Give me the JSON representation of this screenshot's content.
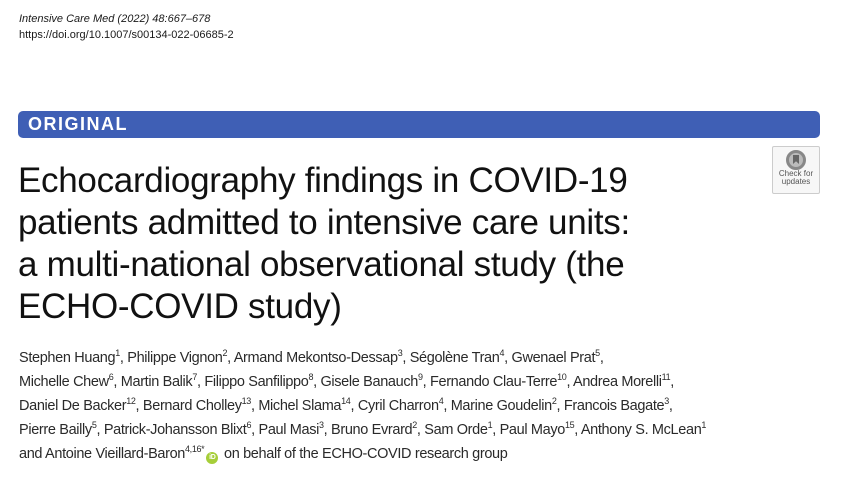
{
  "header": {
    "journal": "Intensive Care Med (2022) 48:667–678",
    "doi": "https://doi.org/10.1007/s00134-022-06685-2"
  },
  "banner": {
    "label": "ORIGINAL",
    "color": "#3f5fb5"
  },
  "check_for_updates": {
    "line1": "Check for",
    "line2": "updates"
  },
  "title_lines": [
    "Echocardiography findings in COVID-19",
    "patients admitted to intensive care units:",
    "a multi-national observational study (the",
    "ECHO-COVID study)"
  ],
  "authors": [
    [
      [
        "Stephen Huang",
        "1",
        ", "
      ],
      [
        "Philippe Vignon",
        "2",
        ", "
      ],
      [
        "Armand Mekontso-Dessap",
        "3",
        ", "
      ],
      [
        "Ségolène Tran",
        "4",
        ", "
      ],
      [
        "Gwenael Prat",
        "5",
        ","
      ]
    ],
    [
      [
        "Michelle Chew",
        "6",
        ", "
      ],
      [
        "Martin Balik",
        "7",
        ", "
      ],
      [
        "Filippo Sanfilippo",
        "8",
        ", "
      ],
      [
        "Gisele Banauch",
        "9",
        ", "
      ],
      [
        "Fernando Clau-Terre",
        "10",
        ", "
      ],
      [
        "Andrea Morelli",
        "11",
        ","
      ]
    ],
    [
      [
        "Daniel De Backer",
        "12",
        ", "
      ],
      [
        "Bernard Cholley",
        "13",
        ", "
      ],
      [
        "Michel Slama",
        "14",
        ", "
      ],
      [
        "Cyril Charron",
        "4",
        ", "
      ],
      [
        "Marine Goudelin",
        "2",
        ", "
      ],
      [
        "Francois Bagate",
        "3",
        ","
      ]
    ],
    [
      [
        "Pierre Bailly",
        "5",
        ", "
      ],
      [
        "Patrick-Johansson Blixt",
        "6",
        ", "
      ],
      [
        "Paul Masi",
        "3",
        ", "
      ],
      [
        "Bruno Evrard",
        "2",
        ", "
      ],
      [
        "Sam Orde",
        "1",
        ", "
      ],
      [
        "Paul Mayo",
        "15",
        ", "
      ],
      [
        "Anthony S. McLean",
        "1",
        ""
      ]
    ]
  ],
  "last_author": {
    "prefix": "and ",
    "name": "Antoine Vieillard-Baron",
    "sup": "4,16*",
    "orcid": "iD",
    "suffix": " on behalf of the ECHO-COVID research group"
  }
}
